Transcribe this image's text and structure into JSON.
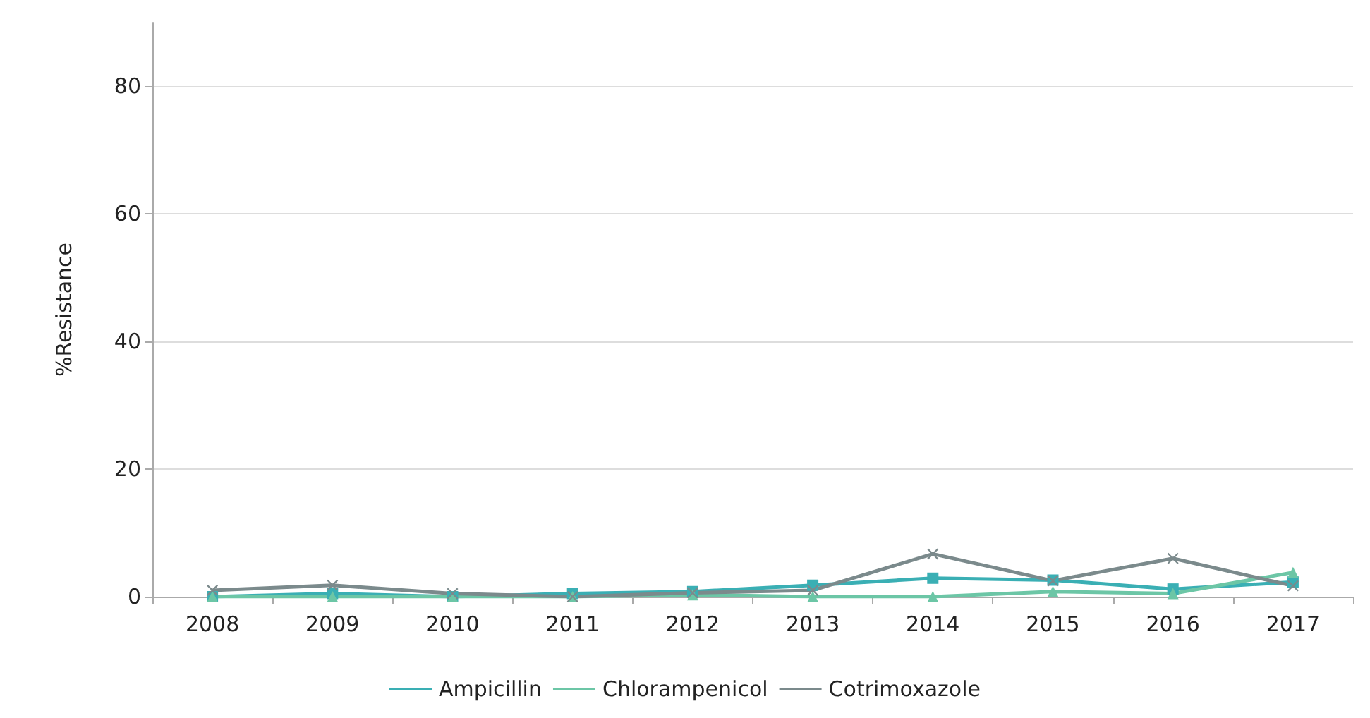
{
  "chart_data": {
    "type": "line",
    "ylabel": "%Resistance",
    "categories": [
      "2008",
      "2009",
      "2010",
      "2011",
      "2012",
      "2013",
      "2014",
      "2015",
      "2016",
      "2017"
    ],
    "series": [
      {
        "name": "Ampicillin",
        "color": "#3aafb4",
        "marker": "square",
        "values": [
          0,
          0.5,
          0,
          0.5,
          0.8,
          1.8,
          2.9,
          2.6,
          1.2,
          2.3
        ]
      },
      {
        "name": "Chlorampenicol",
        "color": "#6cc6a6",
        "marker": "triangle",
        "values": [
          0,
          0,
          0,
          0,
          0.3,
          0,
          0,
          0.8,
          0.5,
          3.8
        ]
      },
      {
        "name": "Cotrimoxazole",
        "color": "#7b8a8c",
        "marker": "cross",
        "values": [
          1.0,
          1.8,
          0.5,
          0,
          0.6,
          1.0,
          6.7,
          2.5,
          6.0,
          1.7
        ]
      }
    ],
    "ylim": [
      0,
      90
    ],
    "yticks": [
      0,
      20,
      40,
      60,
      80
    ],
    "grid": "y",
    "legend": "bottom",
    "line_style": "solid"
  }
}
